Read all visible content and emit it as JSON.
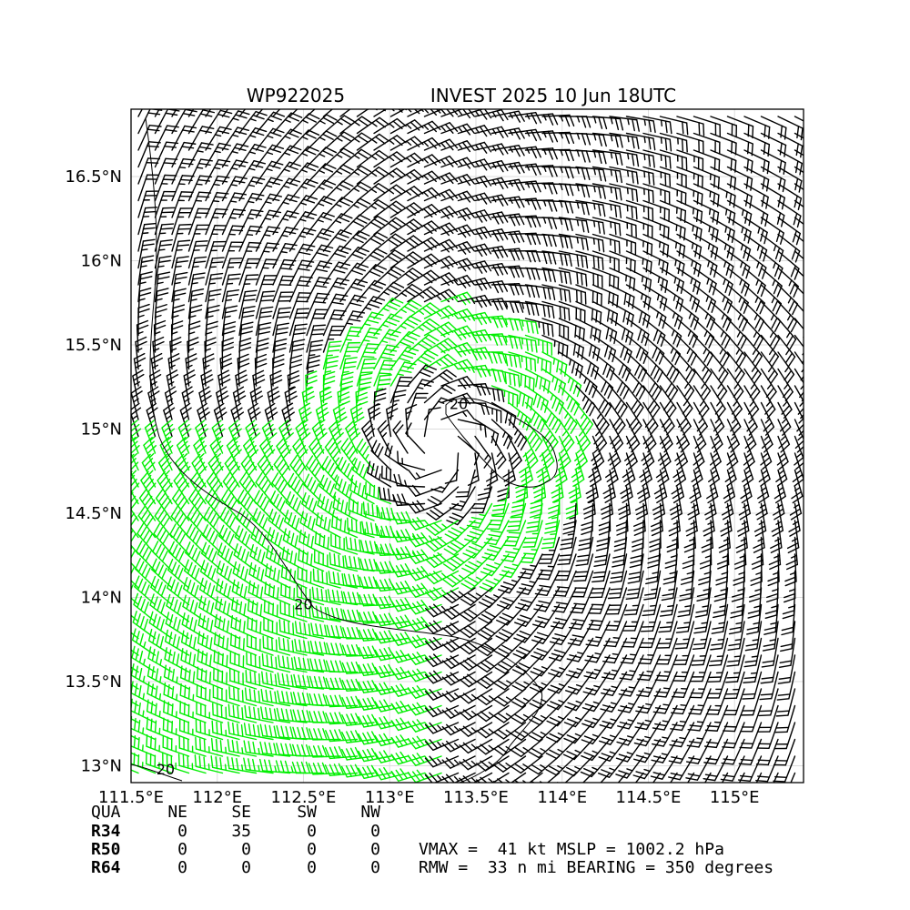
{
  "title": {
    "storm_id": "WP922025",
    "storm_info": "INVEST 2025 10 Jun 18UTC"
  },
  "chart_data": {
    "type": "wind-barb-map",
    "xlim": [
      111.5,
      115.4
    ],
    "ylim": [
      12.9,
      16.9
    ],
    "x_ticks": [
      {
        "value": 111.5,
        "label": "111.5°E"
      },
      {
        "value": 112.0,
        "label": "112°E"
      },
      {
        "value": 112.5,
        "label": "112.5°E"
      },
      {
        "value": 113.0,
        "label": "113°E"
      },
      {
        "value": 113.5,
        "label": "113.5°E"
      },
      {
        "value": 114.0,
        "label": "114°E"
      },
      {
        "value": 114.5,
        "label": "114.5°E"
      },
      {
        "value": 115.0,
        "label": "115°E"
      }
    ],
    "y_ticks": [
      {
        "value": 13.0,
        "label": "13°N"
      },
      {
        "value": 13.5,
        "label": "13.5°N"
      },
      {
        "value": 14.0,
        "label": "14°N"
      },
      {
        "value": 14.5,
        "label": "14.5°N"
      },
      {
        "value": 15.0,
        "label": "15°N"
      },
      {
        "value": 15.5,
        "label": "15.5°N"
      },
      {
        "value": 16.0,
        "label": "16°N"
      },
      {
        "value": 16.5,
        "label": "16.5°N"
      }
    ],
    "grid": true,
    "center": {
      "lon": 113.3,
      "lat": 14.9
    },
    "vmax_kt": 41,
    "rmw_nmi": 33,
    "barb_colors": {
      "below_34kt": "#000000",
      "34kt_to_50kt": "#00ee00",
      "50kt_plus": "#ffa500"
    },
    "contour_labels": [
      {
        "lon": 113.4,
        "lat": 15.12,
        "text": "20"
      },
      {
        "lon": 112.5,
        "lat": 13.93,
        "text": "20"
      },
      {
        "lon": 111.7,
        "lat": 12.95,
        "text": "20"
      }
    ]
  },
  "table": {
    "header": [
      "QUA",
      "NE",
      "SE",
      "SW",
      "NW"
    ],
    "rows": [
      {
        "label": "R34",
        "values": [
          "0",
          "35",
          "0",
          "0"
        ]
      },
      {
        "label": "R50",
        "values": [
          "0",
          "0",
          "0",
          "0"
        ]
      },
      {
        "label": "R64",
        "values": [
          "0",
          "0",
          "0",
          "0"
        ]
      }
    ]
  },
  "summary": {
    "line1": "VMAX =  41 kt MSLP = 1002.2 hPa",
    "line2": "RMW =  33 n mi BEARING = 350 degrees"
  }
}
